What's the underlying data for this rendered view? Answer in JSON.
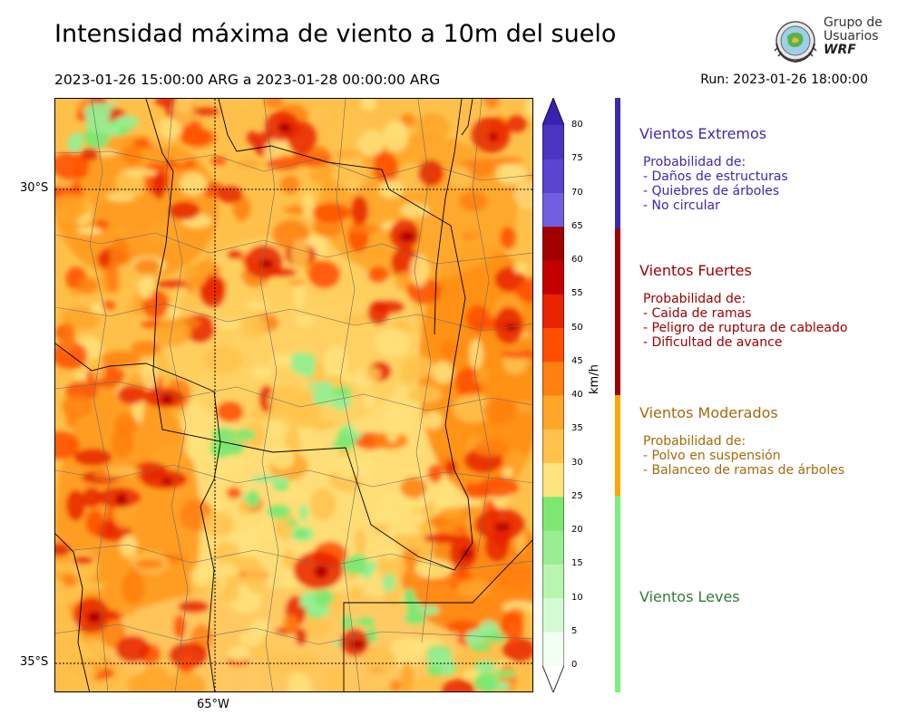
{
  "title": "Intensidad máxima de viento a 10m del suelo",
  "period": "2023-01-26 15:00:00 ARG  a  2023-01-28 00:00:00 ARG",
  "run": "Run: 2023-01-26 18:00:00",
  "logo": {
    "line1": "Grupo de",
    "line2": "Usuarios",
    "line3": "WRF"
  },
  "map": {
    "lat_labels": [
      "30°S",
      "35°S"
    ],
    "lon_labels": [
      "65°W"
    ]
  },
  "colorbar": {
    "unit": "km/h",
    "ticks": [
      "0",
      "5",
      "10",
      "15",
      "20",
      "25",
      "30",
      "35",
      "40",
      "45",
      "50",
      "55",
      "60",
      "65",
      "70",
      "75",
      "80"
    ],
    "colors": [
      "#f0fff0",
      "#d4fad4",
      "#b8f5b0",
      "#98ee90",
      "#7ce872",
      "#ffe37c",
      "#ffc34d",
      "#ffa528",
      "#ff7f10",
      "#ff4e00",
      "#e82300",
      "#c40000",
      "#a00000",
      "#7060e0",
      "#5a44d0",
      "#4a34c0",
      "#3a22b0"
    ]
  },
  "categories": [
    {
      "title": "Vientos Extremos",
      "color": "#3a2ab0",
      "intro": "Probabilidad de:",
      "items": [
        "- Daños de estructuras",
        "- Quiebres de árboles",
        "- No circular"
      ]
    },
    {
      "title": "Vientos Fuertes",
      "color": "#a00000",
      "intro": "Probabilidad de:",
      "items": [
        "- Caida de ramas",
        "- Peligro de ruptura de cableado",
        "- Dificultad de avance"
      ]
    },
    {
      "title": "Vientos Moderados",
      "color": "#a8680a",
      "intro": "Probabilidad de:",
      "items": [
        "- Polvo en suspensión",
        "- Balanceo de ramas de árboles"
      ]
    },
    {
      "title": "Vientos Leves",
      "color": "#2e7d32",
      "intro": "",
      "items": []
    }
  ],
  "legend_bar_colors": {
    "extremos": "#3a2ab0",
    "fuertes": "#a00000",
    "moderados": "#ffa500",
    "leves": "#7cf07c"
  }
}
